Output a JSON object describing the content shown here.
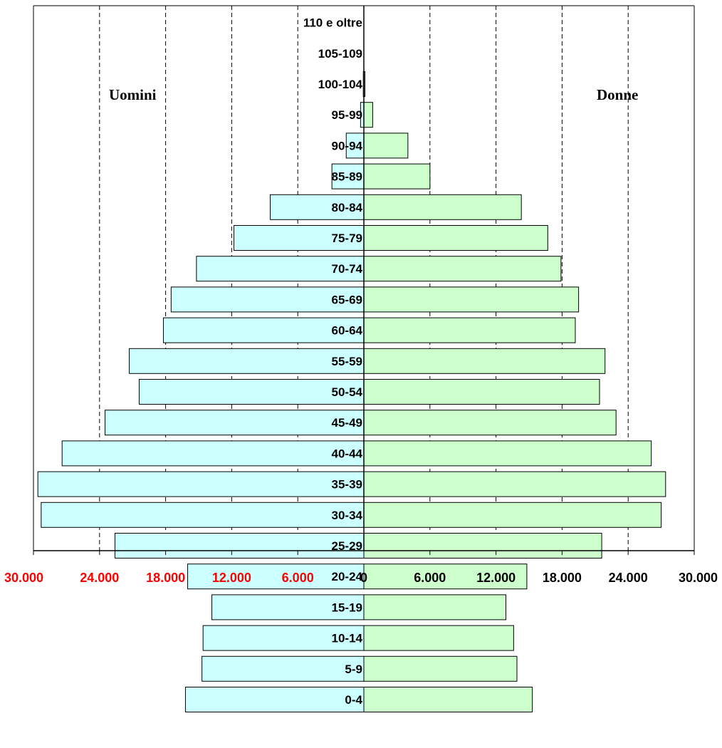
{
  "chart_data": {
    "type": "bar",
    "orientation": "horizontal",
    "style": "population-pyramid",
    "categories": [
      "0-4",
      "5-9",
      "10-14",
      "15-19",
      "20-24",
      "25-29",
      "30-34",
      "35-39",
      "40-44",
      "45-49",
      "50-54",
      "55-59",
      "60-64",
      "65-69",
      "70-74",
      "75-79",
      "80-84",
      "85-89",
      "90-94",
      "95-99",
      "100-104",
      "105-109",
      "110 e oltre"
    ],
    "series": [
      {
        "name": "Uomini",
        "side": "left",
        "color": "#ccffff",
        "values": [
          16200,
          14700,
          14600,
          13800,
          16000,
          22600,
          29300,
          29600,
          27400,
          23500,
          20400,
          21300,
          18200,
          17500,
          15200,
          11800,
          8500,
          2900,
          1600,
          300,
          50,
          0,
          0
        ]
      },
      {
        "name": "Donne",
        "side": "right",
        "color": "#ccffcc",
        "values": [
          15300,
          13900,
          13600,
          12900,
          14800,
          21600,
          27000,
          27400,
          26100,
          22900,
          21400,
          21900,
          19200,
          19500,
          17900,
          16700,
          14300,
          6000,
          4000,
          800,
          100,
          0,
          0
        ]
      }
    ],
    "xlim": [
      -30000,
      30000
    ],
    "x_ticks": [
      -30000,
      -24000,
      -18000,
      -12000,
      -6000,
      0,
      6000,
      12000,
      18000,
      24000,
      30000
    ],
    "x_tick_labels": [
      "30.000",
      "24.000",
      "18.000",
      "12.000",
      "6.000",
      "0",
      "6.000",
      "12.000",
      "18.000",
      "24.000",
      "30.000"
    ],
    "left_tick_color": "#ff0000",
    "right_tick_color": "#000000",
    "grid": "vertical-dashed",
    "side_labels": {
      "left": "Uomini",
      "right": "Donne"
    },
    "title": "",
    "xlabel": "",
    "ylabel": ""
  }
}
